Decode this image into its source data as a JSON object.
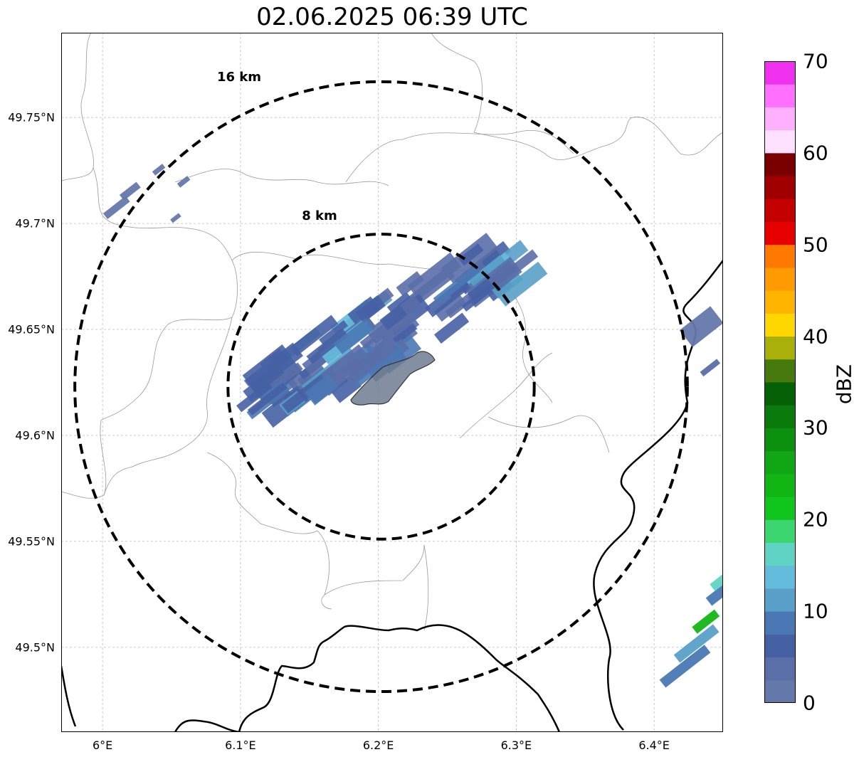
{
  "map": {
    "title": "02.06.2025 06:39 UTC",
    "lat_labels": [
      {
        "text": "49.75°N",
        "value": 49.75
      },
      {
        "text": "49.7°N",
        "value": 49.7
      },
      {
        "text": "49.65°N",
        "value": 49.65
      },
      {
        "text": "49.6°N",
        "value": 49.6
      },
      {
        "text": "49.55°N",
        "value": 49.55
      },
      {
        "text": "49.5°N",
        "value": 49.5
      }
    ],
    "lon_labels": [
      {
        "text": "6°E",
        "value": 6.0
      },
      {
        "text": "6.1°E",
        "value": 6.1
      },
      {
        "text": "6.2°E",
        "value": 6.2
      },
      {
        "text": "6.3°E",
        "value": 6.3
      },
      {
        "text": "6.4°E",
        "value": 6.4
      }
    ],
    "extent": {
      "lon_min": 5.97,
      "lon_max": 6.45,
      "lat_min": 49.46,
      "lat_max": 49.79
    },
    "range_rings": [
      {
        "label": "16 km",
        "radius_km": 16
      },
      {
        "label": "8 km",
        "radius_km": 8
      }
    ],
    "center": {
      "lon": 6.202,
      "lat": 49.623
    }
  },
  "colorbar": {
    "label": "dBZ",
    "ticks": [
      0,
      10,
      20,
      30,
      40,
      50,
      60,
      70
    ],
    "min": 0,
    "max": 70,
    "step": 2.5,
    "colors": [
      "#6478aa",
      "#5a6ea8",
      "#4660a4",
      "#4a78b4",
      "#58a0c8",
      "#64bcdc",
      "#60d4c4",
      "#3cd670",
      "#10c61c",
      "#12b614",
      "#10a614",
      "#0c9010",
      "#0a7a0c",
      "#066006",
      "#467a0c",
      "#aab00a",
      "#ffd700",
      "#ffb400",
      "#ff9a00",
      "#ff7800",
      "#e60000",
      "#c40000",
      "#a00000",
      "#7a0000",
      "#ffe0ff",
      "#ffb0ff",
      "#ff70ff",
      "#f032f0"
    ]
  }
}
